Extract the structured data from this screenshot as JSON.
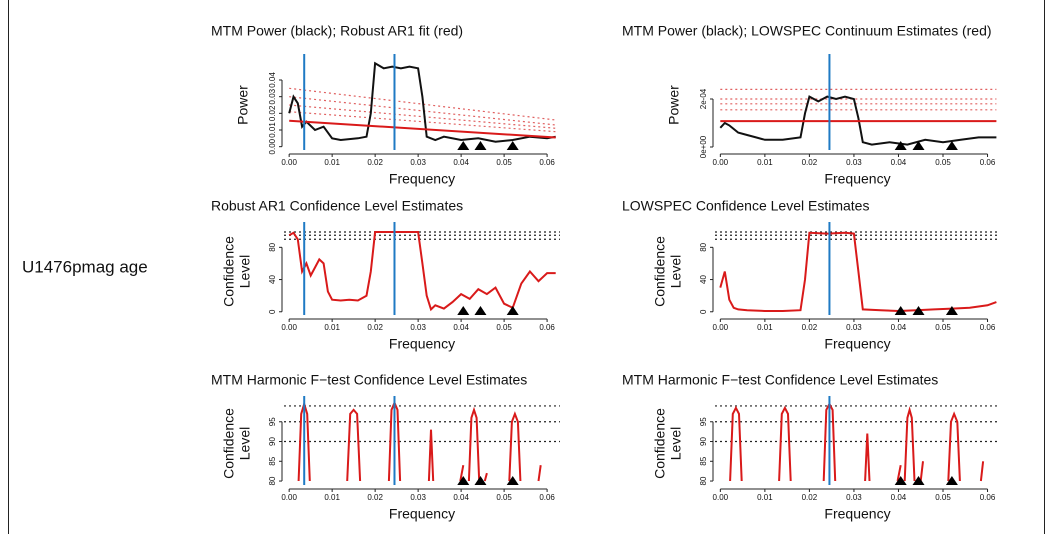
{
  "row_label": "U1476pmag age",
  "chart_data": [
    {
      "type": "line",
      "title": "MTM Power (black); Robust AR1 fit (red)",
      "xlabel": "Frequency",
      "ylabel": [
        "Power"
      ],
      "xlim": [
        -0.0012,
        0.063
      ],
      "xticks": [
        {
          "value": 0,
          "label": "0.00"
        },
        0.01,
        0.02,
        0.03,
        0.04,
        0.05,
        0.06
      ],
      "ylim": [
        -0.002,
        0.052
      ],
      "yticks": [
        {
          "value": 0,
          "label": "0.00"
        },
        0.01,
        0.02,
        0.03,
        0.04
      ],
      "series": [
        {
          "color": "#e06060",
          "style": "dotted",
          "x": [
            0,
            0.062
          ],
          "values": [
            0.035,
            0.016
          ]
        },
        {
          "color": "#e06060",
          "style": "dotted",
          "x": [
            0,
            0.062
          ],
          "values": [
            0.03,
            0.013
          ]
        },
        {
          "color": "#e06060",
          "style": "dotted",
          "x": [
            0,
            0.062
          ],
          "values": [
            0.025,
            0.011
          ]
        },
        {
          "color": "#e06060",
          "style": "dotted",
          "x": [
            0,
            0.062
          ],
          "values": [
            0.021,
            0.009
          ]
        },
        {
          "color": "#111111",
          "style": "solid",
          "x": [
            0,
            0.001,
            0.002,
            0.003,
            0.004,
            0.006,
            0.008,
            0.01,
            0.012,
            0.016,
            0.018,
            0.019,
            0.02,
            0.022,
            0.024,
            0.026,
            0.028,
            0.03,
            0.031,
            0.032,
            0.034,
            0.036,
            0.04,
            0.044,
            0.048,
            0.052,
            0.056,
            0.06,
            0.062
          ],
          "values": [
            0.02,
            0.03,
            0.026,
            0.012,
            0.015,
            0.01,
            0.012,
            0.005,
            0.004,
            0.005,
            0.006,
            0.02,
            0.05,
            0.047,
            0.048,
            0.047,
            0.048,
            0.047,
            0.03,
            0.006,
            0.004,
            0.006,
            0.004,
            0.005,
            0.003,
            0.004,
            0.006,
            0.005,
            0.006
          ]
        },
        {
          "color": "#d91a1a",
          "style": "solid",
          "x": [
            0,
            0.062
          ],
          "values": [
            0.0155,
            0.0055
          ]
        }
      ],
      "vlines": {
        "color": "#1f7ac4",
        "x": [
          0.0035,
          0.0245
        ]
      },
      "markers": {
        "color": "#000000",
        "x": [
          0.0405,
          0.0445,
          0.052
        ]
      }
    },
    {
      "type": "line",
      "title": "MTM Power (black); LOWSPEC Continuum Estimates (red)",
      "xlabel": "Frequency",
      "ylabel": [
        "Power"
      ],
      "xlim": [
        -0.0012,
        0.0628
      ],
      "xticks": [
        {
          "value": 0,
          "label": "0.00"
        },
        0.01,
        0.02,
        0.03,
        0.04,
        0.05,
        0.06
      ],
      "ylim": [
        -1.25e-05,
        0.0003625
      ],
      "yticks": [
        {
          "value": 0,
          "label": "0e+00"
        },
        {
          "value": 0.0002,
          "label": "2e-04"
        }
      ],
      "series": [
        {
          "color": "#e06060",
          "style": "dotted",
          "x": [
            0,
            0.062
          ],
          "values": [
            0.00024,
            0.00024
          ]
        },
        {
          "color": "#e06060",
          "style": "dotted",
          "x": [
            0,
            0.062
          ],
          "values": [
            0.0002,
            0.0002
          ]
        },
        {
          "color": "#e06060",
          "style": "dotted",
          "x": [
            0,
            0.062
          ],
          "values": [
            0.00018,
            0.00018
          ]
        },
        {
          "color": "#e06060",
          "style": "dotted",
          "x": [
            0,
            0.062
          ],
          "values": [
            0.000155,
            0.000155
          ]
        },
        {
          "color": "#111111",
          "style": "solid",
          "x": [
            0,
            0.001,
            0.002,
            0.004,
            0.006,
            0.008,
            0.01,
            0.014,
            0.018,
            0.019,
            0.02,
            0.022,
            0.024,
            0.026,
            0.028,
            0.03,
            0.031,
            0.032,
            0.034,
            0.038,
            0.042,
            0.046,
            0.05,
            0.054,
            0.058,
            0.062
          ],
          "values": [
            8e-05,
            0.0001,
            9e-05,
            6e-05,
            5e-05,
            4e-05,
            3e-05,
            3e-05,
            4e-05,
            0.00014,
            0.00021,
            0.00019,
            0.00021,
            0.0002,
            0.00021,
            0.0002,
            0.00012,
            2e-05,
            1e-05,
            2e-05,
            1e-05,
            3e-05,
            2e-05,
            3e-05,
            4e-05,
            4e-05
          ]
        },
        {
          "color": "#d91a1a",
          "style": "solid",
          "x": [
            0,
            0.062
          ],
          "values": [
            0.000108,
            0.000108
          ]
        }
      ],
      "vlines": {
        "color": "#1f7ac4",
        "x": [
          0.0245
        ]
      },
      "markers": {
        "color": "#000000",
        "x": [
          0.0405,
          0.0445,
          0.052
        ]
      }
    },
    {
      "type": "line",
      "title": "Robust AR1 Confidence Level Estimates",
      "xlabel": "Frequency",
      "ylabel": [
        "Confidence",
        "Level"
      ],
      "xlim": [
        -0.0012,
        0.063
      ],
      "xticks": [
        {
          "value": 0,
          "label": "0.00"
        },
        0.01,
        0.02,
        0.03,
        0.04,
        0.05,
        0.06
      ],
      "ylim": [
        -4,
        104
      ],
      "yticks": [
        0,
        40,
        80
      ],
      "reference_lines": {
        "color": "#222222",
        "values": [
          90,
          95,
          99
        ]
      },
      "series": [
        {
          "color": "#d91a1a",
          "style": "solid",
          "x": [
            0,
            0.001,
            0.002,
            0.003,
            0.004,
            0.005,
            0.006,
            0.007,
            0.008,
            0.009,
            0.01,
            0.012,
            0.014,
            0.016,
            0.018,
            0.019,
            0.02,
            0.024,
            0.028,
            0.03,
            0.031,
            0.032,
            0.033,
            0.034,
            0.036,
            0.038,
            0.04,
            0.042,
            0.044,
            0.046,
            0.048,
            0.05,
            0.052,
            0.054,
            0.056,
            0.058,
            0.06,
            0.062
          ],
          "values": [
            95,
            98,
            90,
            50,
            60,
            45,
            55,
            65,
            60,
            25,
            15,
            14,
            15,
            14,
            20,
            50,
            99,
            99,
            99,
            99,
            60,
            20,
            3,
            8,
            4,
            12,
            22,
            16,
            28,
            22,
            30,
            10,
            5,
            35,
            50,
            38,
            48,
            48
          ]
        }
      ],
      "vlines": {
        "color": "#1f7ac4",
        "x": [
          0.0035,
          0.0245
        ]
      },
      "markers": {
        "color": "#000000",
        "x": [
          0.0405,
          0.0445,
          0.052
        ]
      }
    },
    {
      "type": "line",
      "title": "LOWSPEC Confidence Level Estimates",
      "xlabel": "Frequency",
      "ylabel": [
        "Confidence",
        "Level"
      ],
      "xlim": [
        -0.0012,
        0.0628
      ],
      "xticks": [
        {
          "value": 0,
          "label": "0.00"
        },
        0.01,
        0.02,
        0.03,
        0.04,
        0.05,
        0.06
      ],
      "ylim": [
        -4,
        104
      ],
      "yticks": [
        0,
        40,
        80
      ],
      "reference_lines": {
        "color": "#222222",
        "values": [
          90,
          95,
          99
        ]
      },
      "series": [
        {
          "color": "#d91a1a",
          "style": "solid",
          "x": [
            0,
            0.001,
            0.002,
            0.003,
            0.004,
            0.006,
            0.01,
            0.014,
            0.018,
            0.019,
            0.02,
            0.024,
            0.028,
            0.03,
            0.031,
            0.032,
            0.036,
            0.04,
            0.044,
            0.048,
            0.052,
            0.056,
            0.06,
            0.062
          ],
          "values": [
            30,
            50,
            15,
            5,
            3,
            2,
            1,
            1,
            2,
            40,
            98,
            97,
            98,
            97,
            50,
            3,
            2,
            1,
            2,
            3,
            4,
            5,
            8,
            12
          ]
        }
      ],
      "vlines": {
        "color": "#1f7ac4",
        "x": [
          0.0245
        ]
      },
      "markers": {
        "color": "#000000",
        "x": [
          0.0405,
          0.0445,
          0.052
        ]
      }
    },
    {
      "type": "line",
      "title": "MTM Harmonic F−test Confidence Level Estimates",
      "xlabel": "Frequency",
      "ylabel": [
        "Confidence",
        "Level"
      ],
      "xlim": [
        -0.0012,
        0.063
      ],
      "xticks": [
        {
          "value": 0,
          "label": "0.00"
        },
        0.01,
        0.02,
        0.03,
        0.04,
        0.05,
        0.06
      ],
      "ylim": [
        79,
        100
      ],
      "yticks": [
        80,
        85,
        90,
        95
      ],
      "reference_lines": {
        "color": "#222222",
        "values": [
          90,
          95,
          99
        ]
      },
      "series": [
        {
          "color": "#d91a1a",
          "style": "solid",
          "x": [
            0.0022,
            0.0028,
            0.0035,
            0.0042,
            0.0048,
            null,
            0.0135,
            0.0142,
            0.015,
            0.0158,
            0.0165,
            null,
            0.0232,
            0.0238,
            0.0245,
            0.0252,
            0.0258,
            null,
            0.0325,
            0.033,
            0.0335,
            null,
            0.0398,
            0.0405,
            null,
            0.0418,
            0.0424,
            0.043,
            0.0436,
            0.0442,
            null,
            0.0455,
            0.046,
            null,
            0.0512,
            0.0518,
            0.0525,
            0.0532,
            0.0538,
            null,
            0.058,
            0.0585
          ],
          "values": [
            80,
            97,
            99.5,
            97,
            80,
            null,
            80,
            97,
            98,
            97,
            80,
            null,
            80,
            98,
            99.8,
            98,
            80,
            null,
            80,
            93,
            80,
            null,
            80,
            84,
            null,
            80,
            96,
            98,
            96,
            80,
            null,
            80,
            82,
            null,
            80,
            95,
            97,
            95,
            80,
            null,
            80,
            84
          ]
        }
      ],
      "vlines": {
        "color": "#1f7ac4",
        "x": [
          0.0035,
          0.0245
        ]
      },
      "markers": {
        "color": "#000000",
        "x": [
          0.0405,
          0.0445,
          0.052
        ]
      }
    },
    {
      "type": "line",
      "title": "MTM Harmonic F−test Confidence Level Estimates",
      "xlabel": "Frequency",
      "ylabel": [
        "Confidence",
        "Level"
      ],
      "xlim": [
        -0.0012,
        0.0628
      ],
      "xticks": [
        {
          "value": 0,
          "label": "0.00"
        },
        0.01,
        0.02,
        0.03,
        0.04,
        0.05,
        0.06
      ],
      "ylim": [
        79,
        100
      ],
      "yticks": [
        80,
        85,
        90,
        95
      ],
      "reference_lines": {
        "color": "#222222",
        "values": [
          90,
          95,
          99
        ]
      },
      "series": [
        {
          "color": "#d91a1a",
          "style": "solid",
          "x": [
            0.0022,
            0.0028,
            0.0035,
            0.0042,
            0.0048,
            null,
            0.0132,
            0.0138,
            0.0145,
            0.0152,
            0.0158,
            null,
            0.0232,
            0.0238,
            0.0245,
            0.0252,
            0.0258,
            null,
            0.0325,
            0.033,
            0.0335,
            null,
            0.0398,
            0.0405,
            null,
            0.0414,
            0.042,
            0.0425,
            0.043,
            0.0436,
            null,
            0.045,
            0.0455,
            null,
            0.0512,
            0.0518,
            0.0525,
            0.0532,
            0.0538,
            null,
            0.0585,
            0.059
          ],
          "values": [
            80,
            97,
            98.5,
            97,
            80,
            null,
            80,
            97,
            98.5,
            97,
            80,
            null,
            80,
            98,
            99.5,
            98,
            80,
            null,
            80,
            92,
            80,
            null,
            80,
            84,
            null,
            80,
            96,
            98,
            96,
            80,
            null,
            80,
            85,
            null,
            80,
            95,
            97,
            95,
            80,
            null,
            80,
            85
          ]
        }
      ],
      "vlines": {
        "color": "#1f7ac4",
        "x": [
          0.0245
        ]
      },
      "markers": {
        "color": "#000000",
        "x": [
          0.0405,
          0.0445,
          0.052
        ]
      }
    }
  ]
}
